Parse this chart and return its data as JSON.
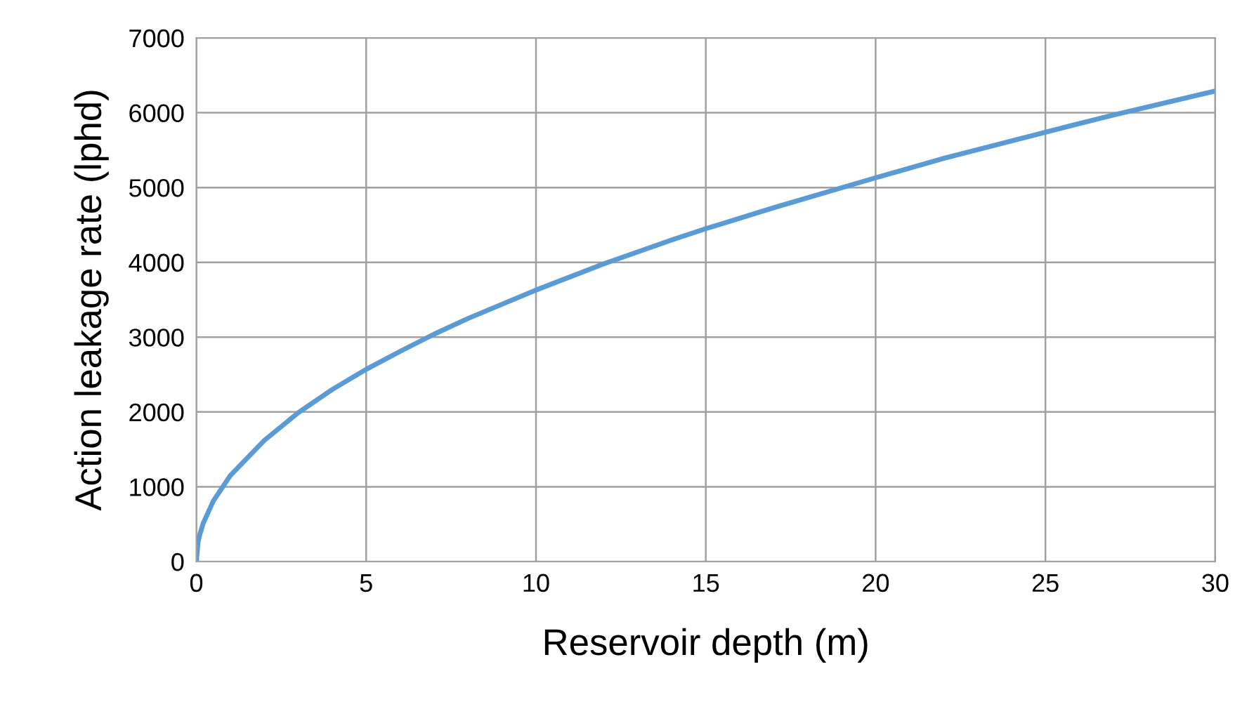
{
  "chart_data": {
    "type": "line",
    "xlabel": "Reservoir depth (m)",
    "ylabel": "Action leakage rate (lphd)",
    "x": [
      0,
      0.05,
      0.1,
      0.2,
      0.5,
      1,
      2,
      3,
      4,
      5,
      6,
      7,
      8,
      10,
      12,
      14,
      15,
      17,
      20,
      22,
      25,
      27,
      30
    ],
    "series": [
      {
        "color": "#5b9bd5",
        "values": [
          0,
          260,
          360,
          510,
          810,
          1150,
          1620,
          1990,
          2300,
          2570,
          2810,
          3040,
          3250,
          3630,
          3980,
          4300,
          4450,
          4730,
          5130,
          5390,
          5740,
          5970,
          6290
        ]
      }
    ],
    "xlim": [
      0,
      30
    ],
    "xticks": [
      0,
      5,
      10,
      15,
      20,
      25,
      30
    ],
    "ylim": [
      0,
      7000
    ],
    "yticks": [
      0,
      1000,
      2000,
      3000,
      4000,
      5000,
      6000,
      7000
    ],
    "grid": true,
    "marker": "none",
    "line_style": "solid"
  }
}
